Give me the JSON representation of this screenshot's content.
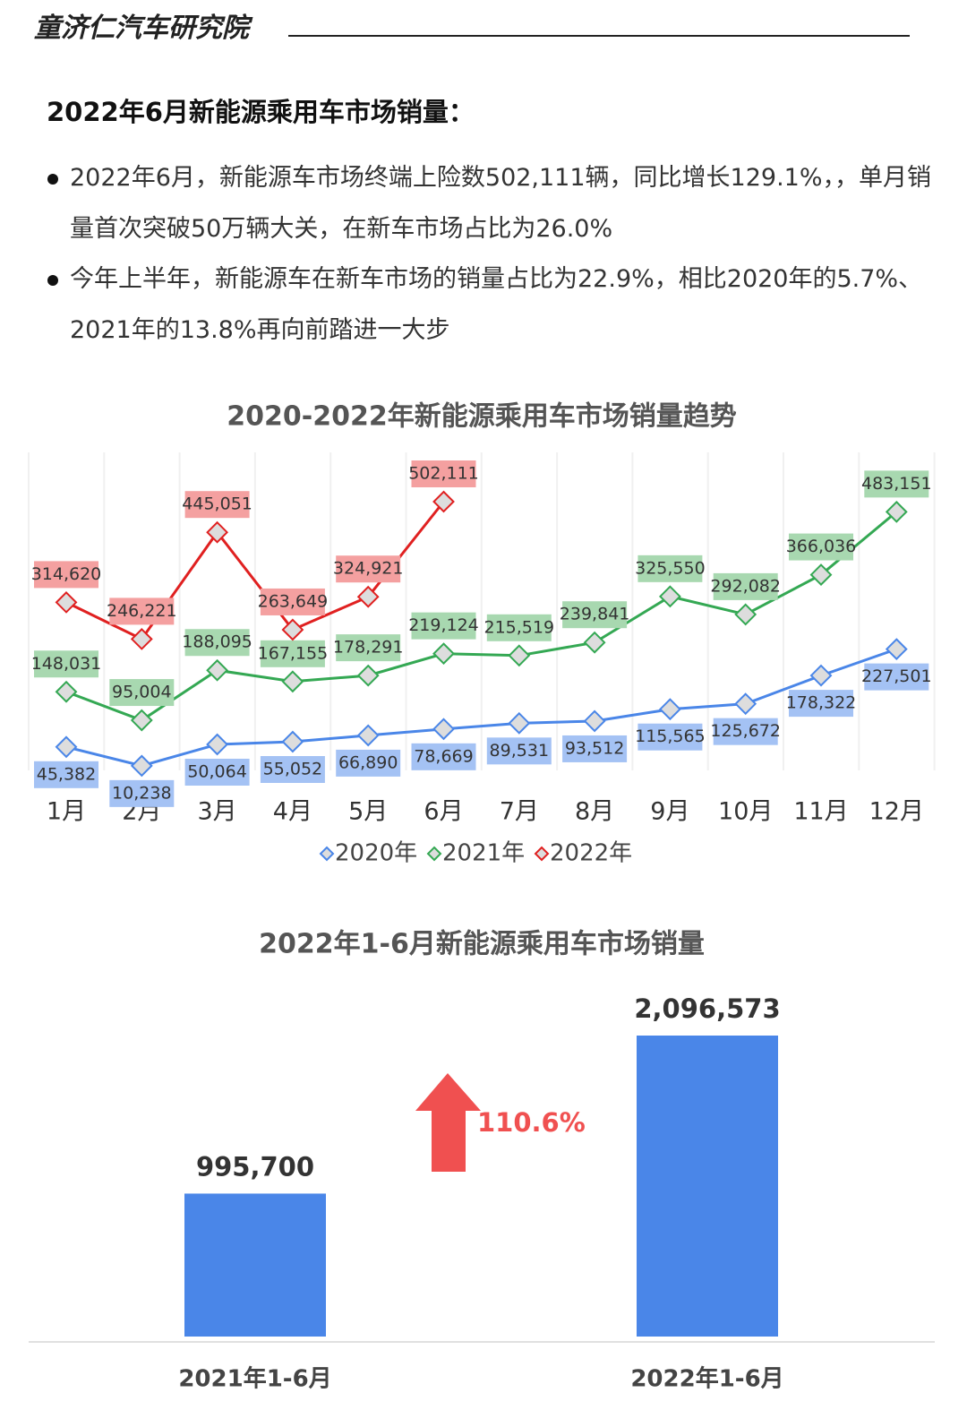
{
  "header": {
    "title": "童济仁汽车研究院"
  },
  "heading": "2022年6月新能源乘用车市场销量：",
  "bullets": [
    "2022年6月，新能源车市场终端上险数502,111辆，同比增长129.1%，，单月销量首次突破50万辆大关，在新车市场占比为26.0%",
    "今年上半年，新能源车在新车市场的销量占比为22.9%，相比2020年的5.7%、2021年的13.8%再向前踏进一大步"
  ],
  "chart_data": [
    {
      "type": "line",
      "title": "2020-2022年新能源乘用车市场销量趋势",
      "categories": [
        "1月",
        "2月",
        "3月",
        "4月",
        "5月",
        "6月",
        "7月",
        "8月",
        "9月",
        "10月",
        "11月",
        "12月"
      ],
      "series": [
        {
          "name": "2020年",
          "color": "#4a86e8",
          "values": [
            45382,
            10238,
            50064,
            55052,
            66890,
            78669,
            89531,
            93512,
            115565,
            125672,
            178322,
            227501
          ],
          "value_labels": [
            "45,382",
            "10,238",
            "50,064",
            "55,052",
            "66,890",
            "78,669",
            "89,531",
            "93,512",
            "115,565",
            "125,672",
            "178,322",
            "227,501"
          ]
        },
        {
          "name": "2021年",
          "color": "#34a853",
          "values": [
            148031,
            95004,
            188095,
            167155,
            178291,
            219124,
            215519,
            239841,
            325550,
            292082,
            366036,
            483151
          ],
          "value_labels": [
            "148,031",
            "95,004",
            "188,095",
            "167,155",
            "178,291",
            "219,124",
            "215,519",
            "239,841",
            "325,550",
            "292,082",
            "366,036",
            "483,151"
          ]
        },
        {
          "name": "2022年",
          "color": "#e02020",
          "values": [
            314620,
            246221,
            445051,
            263649,
            324921,
            502111,
            null,
            null,
            null,
            null,
            null,
            null
          ],
          "value_labels": [
            "314,620",
            "246,221",
            "445,051",
            "263,649",
            "324,921",
            "502,111",
            null,
            null,
            null,
            null,
            null,
            null
          ]
        }
      ],
      "legend": "bottom"
    },
    {
      "type": "bar",
      "title": "2022年1-6月新能源乘用车市场销量",
      "categories": [
        "2021年1-6月",
        "2022年1-6月"
      ],
      "values": [
        995700,
        2096573
      ],
      "value_labels": [
        "995,700",
        "2,096,573"
      ],
      "color": "#4a86e8",
      "annotation": "110.6%"
    }
  ]
}
